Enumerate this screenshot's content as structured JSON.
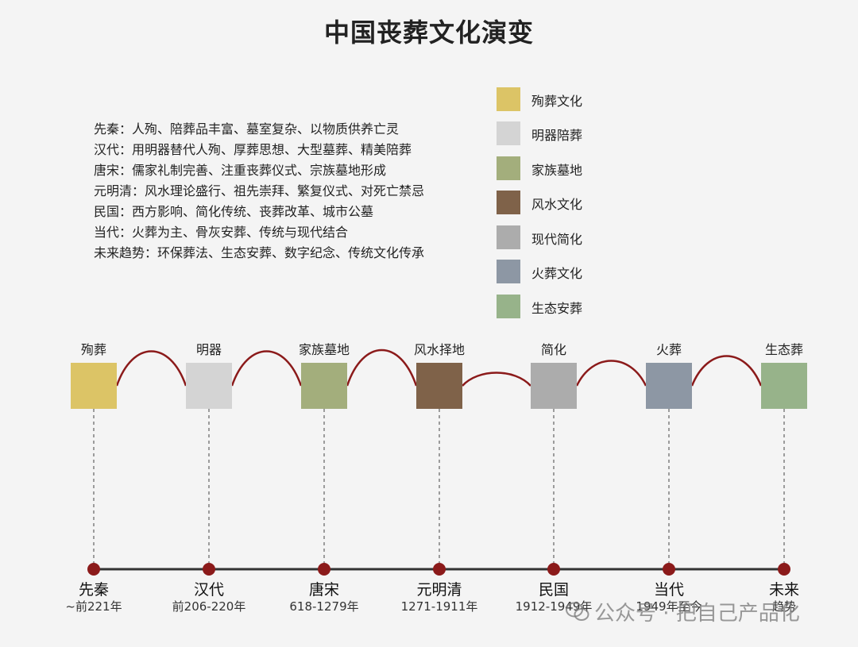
{
  "title": "中国丧葬文化演变",
  "descriptions": [
    "先秦：人殉、陪葬品丰富、墓室复杂、以物质供养亡灵",
    "汉代：用明器替代人殉、厚葬思想、大型墓葬、精美陪葬",
    "唐宋：儒家礼制完善、注重丧葬仪式、宗族墓地形成",
    "元明清：风水理论盛行、祖先崇拜、繁复仪式、对死亡禁忌",
    "民国：西方影响、简化传统、丧葬改革、城市公墓",
    "当代：火葬为主、骨灰安葬、传统与现代结合",
    "未来趋势：环保葬法、生态安葬、数字纪念、传统文化传承"
  ],
  "legend": [
    {
      "label": "殉葬文化",
      "color": "#dcc466"
    },
    {
      "label": "明器陪葬",
      "color": "#d4d4d4"
    },
    {
      "label": "家族墓地",
      "color": "#a3ae7c"
    },
    {
      "label": "风水文化",
      "color": "#7f6249"
    },
    {
      "label": "现代简化",
      "color": "#acacac"
    },
    {
      "label": "火葬文化",
      "color": "#8d97a4"
    },
    {
      "label": "生态安葬",
      "color": "#97b38a"
    }
  ],
  "nodes": [
    {
      "label": "殉葬",
      "color": "#dcc466",
      "era": "先秦",
      "date": "~前221年"
    },
    {
      "label": "明器",
      "color": "#d4d4d4",
      "era": "汉代",
      "date": "前206-220年"
    },
    {
      "label": "家族墓地",
      "color": "#a3ae7c",
      "era": "唐宋",
      "date": "618-1279年"
    },
    {
      "label": "风水择地",
      "color": "#7f6249",
      "era": "元明清",
      "date": "1271-1911年"
    },
    {
      "label": "简化",
      "color": "#acacac",
      "era": "民国",
      "date": "1912-1949年"
    },
    {
      "label": "火葬",
      "color": "#8d97a4",
      "era": "当代",
      "date": "1949年至今"
    },
    {
      "label": "生态葬",
      "color": "#97b38a",
      "era": "未来",
      "date": "趋势"
    }
  ],
  "colors": {
    "connector": "#8b1a1a",
    "timeline_axis": "#333333",
    "timeline_dot": "#8b1a1a",
    "dashed_line": "#444444"
  },
  "watermark": "公众号 · 把自己产品化"
}
